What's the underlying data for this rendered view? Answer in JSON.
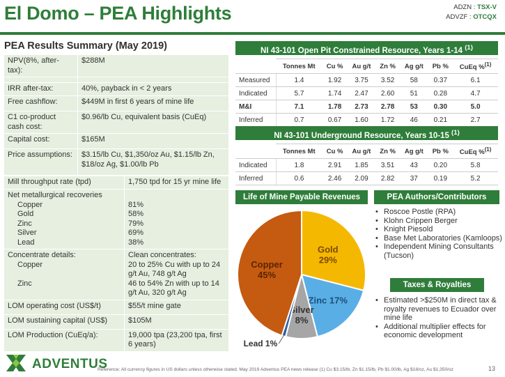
{
  "header": {
    "title": "El Domo – PEA Highlights",
    "tickers": [
      {
        "label": "ADZN : ",
        "value": "TSX-V"
      },
      {
        "label": "ADVZF : ",
        "value": "OTCQX"
      }
    ]
  },
  "summary": {
    "title": "PEA Results Summary (May 2019)",
    "rows_a": [
      {
        "k": "NPV(8%, after-tax):",
        "v": "$288M"
      },
      {
        "k": "IRR after-tax:",
        "v": "40%, payback in < 2 years"
      },
      {
        "k": "Free cashflow:",
        "v": "$449M in first 6 years of mine life"
      },
      {
        "k": "C1 co-product cash cost:",
        "v": "$0.96/lb Cu, equivalent basis (CuEq)"
      },
      {
        "k": "Capital cost:",
        "v": "$165M"
      },
      {
        "k": "Price assumptions:",
        "v": "$3.15/lb Cu, $1,350/oz Au, $1.15/lb Zn, $18/oz Ag, $1.00/lb Pb"
      }
    ],
    "mill": {
      "k": "Mill throughput rate (tpd)",
      "v": "1,750 tpd for 15 yr mine life"
    },
    "recoveries": {
      "k": "Net metallurgical recoveries",
      "items": [
        {
          "k": "Copper",
          "v": "81%"
        },
        {
          "k": "Gold",
          "v": "58%"
        },
        {
          "k": "Zinc",
          "v": "79%"
        },
        {
          "k": "Silver",
          "v": "69%"
        },
        {
          "k": "Lead",
          "v": "38%"
        }
      ]
    },
    "concentrate": {
      "k": "Concentrate details:",
      "v_head": "Clean concentrates:",
      "items": [
        {
          "k": "Copper",
          "v": "20 to 25% Cu with up to 24 g/t Au, 748 g/t Ag"
        },
        {
          "k": "Zinc",
          "v": "46 to 54% Zn with up to 14 g/t Au, 320 g/t Ag"
        }
      ]
    },
    "rows_c": [
      {
        "k": "LOM operating cost (US$/t)",
        "v": "$55/t mine gate"
      },
      {
        "k": "LOM sustaining capital (US$)",
        "v": "$105M"
      },
      {
        "k": "LOM Production (CuEq/a):",
        "v": "19,000 tpa (23,200 tpa, first 6 years)"
      }
    ]
  },
  "open_pit": {
    "title": "NI 43-101 Open Pit Constrained Resource, Years 1-14",
    "title_sup": "(1)",
    "columns": [
      "",
      "Tonnes Mt",
      "Cu %",
      "Au g/t",
      "Zn %",
      "Ag g/t",
      "Pb %",
      "CuEq %"
    ],
    "col_sup": "(1)",
    "rows": [
      {
        "label": "Measured",
        "values": [
          "1.4",
          "1.92",
          "3.75",
          "3.52",
          "58",
          "0.37",
          "6.1"
        ],
        "bold": false
      },
      {
        "label": "Indicated",
        "values": [
          "5.7",
          "1.74",
          "2.47",
          "2.60",
          "51",
          "0.28",
          "4.7"
        ],
        "bold": false
      },
      {
        "label": "M&I",
        "values": [
          "7.1",
          "1.78",
          "2.73",
          "2.78",
          "53",
          "0.30",
          "5.0"
        ],
        "bold": true
      },
      {
        "label": "Inferred",
        "values": [
          "0.7",
          "0.67",
          "1.60",
          "1.72",
          "46",
          "0.21",
          "2.7"
        ],
        "bold": false
      }
    ]
  },
  "underground": {
    "title": "NI 43-101 Underground Resource, Years 10-15",
    "title_sup": "(1)",
    "columns": [
      "",
      "Tonnes Mt",
      "Cu %",
      "Au g/t",
      "Zn %",
      "Ag g/t",
      "Pb %",
      "CuEq %"
    ],
    "col_sup": "(1)",
    "rows": [
      {
        "label": "Indicated",
        "values": [
          "1.8",
          "2.91",
          "1.85",
          "3.51",
          "43",
          "0.20",
          "5.8"
        ],
        "bold": false
      },
      {
        "label": "Inferred",
        "values": [
          "0.6",
          "2.46",
          "2.09",
          "2.82",
          "37",
          "0.19",
          "5.2"
        ],
        "bold": false
      }
    ]
  },
  "revenues": {
    "title": "Life of Mine Payable Revenues"
  },
  "chart_data": {
    "type": "pie",
    "title": "Life of Mine Payable Revenues",
    "slices": [
      {
        "name": "Gold",
        "value": 29,
        "label": "29%",
        "color": "#f5b800"
      },
      {
        "name": "Zinc",
        "value": 17,
        "label": "17%",
        "color": "#5aaee6"
      },
      {
        "name": "Silver",
        "value": 8,
        "label": "8%",
        "color": "#a6a6a6"
      },
      {
        "name": "Lead",
        "value": 1,
        "label": "1%",
        "color": "#2e5fa3"
      },
      {
        "name": "Copper",
        "value": 45,
        "label": "45%",
        "color": "#c55a11"
      }
    ]
  },
  "authors": {
    "title": "PEA Authors/Contributors",
    "items": [
      "Roscoe Postle (RPA)",
      "Klohn Crippen Berger",
      "Knight Piesold",
      "Base Met Laboratories (Kamloops)",
      "Independent Mining Consultants (Tucson)"
    ]
  },
  "taxes": {
    "title": "Taxes & Royalties",
    "items": [
      "Estimated >$250M in direct tax & royalty revenues to Ecuador over mine life",
      "Additional multiplier effects for economic development"
    ]
  },
  "footer": {
    "logo_text": "ADVENTUS",
    "reference": "Reference: All currency figures in US dollars unless otherwise stated. May 2019 Adventus PEA news release (1) Cu $3.15/lb, Zn $1.15/lb, Pb $1.00/lb, Ag $18/oz, Au $1,350/oz",
    "page": "13"
  },
  "colors": {
    "brand_green": "#2f7d3a",
    "table_fill": "#e6efe0"
  }
}
